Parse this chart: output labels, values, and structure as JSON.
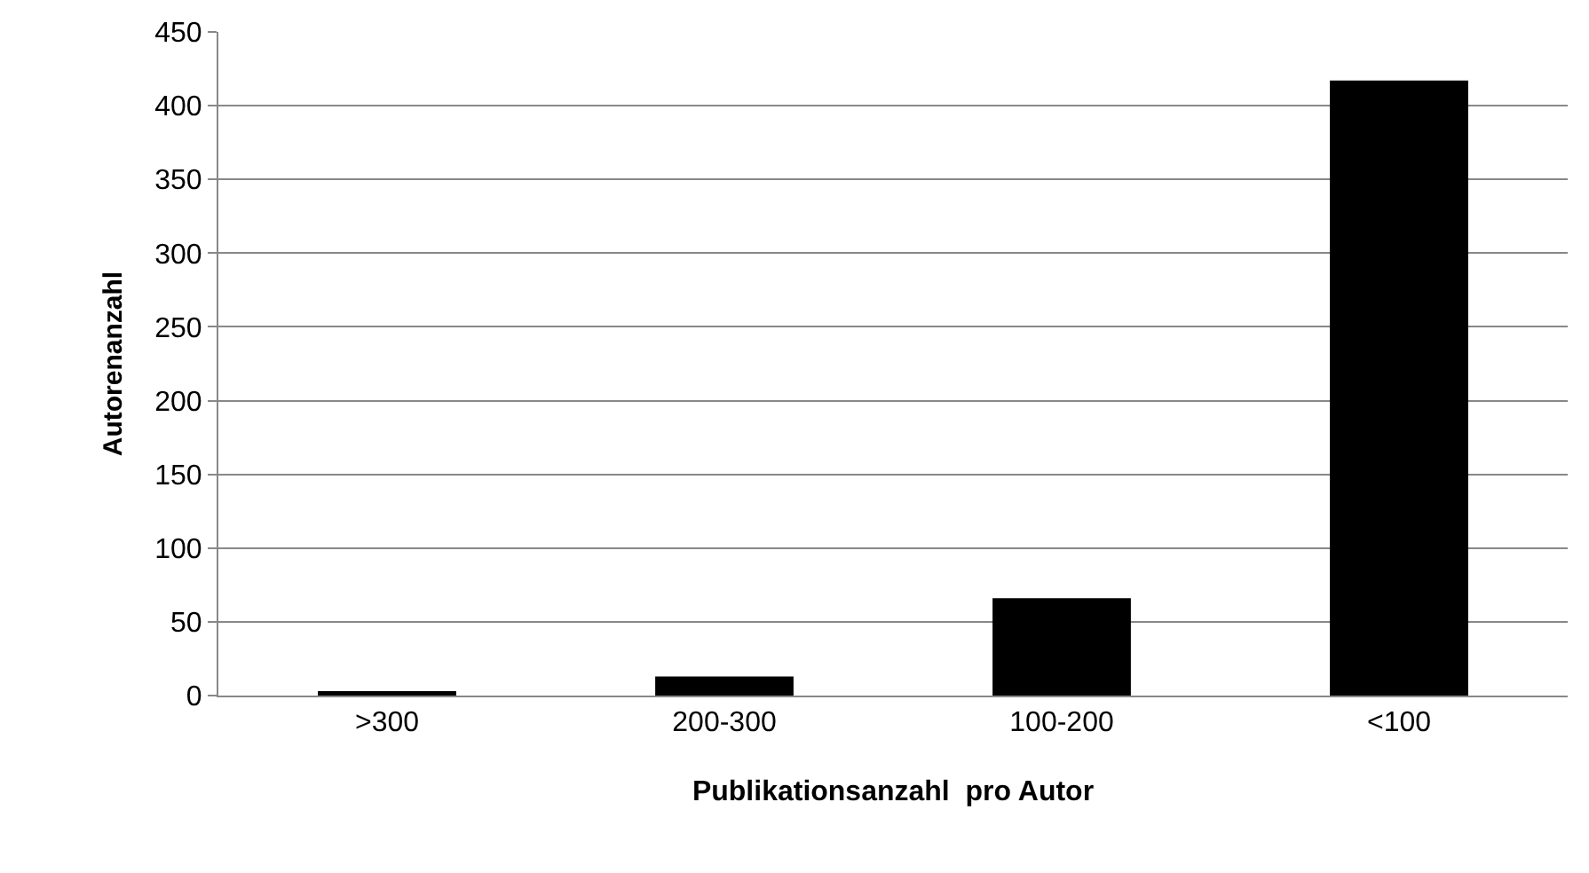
{
  "chart_data": {
    "type": "bar",
    "xlabel": "Publikationsanzahl  pro Autor",
    "ylabel": "Autorenanzahl",
    "categories": [
      ">300",
      "200-300",
      "100-200",
      "<100"
    ],
    "values": [
      3,
      13,
      66,
      417
    ],
    "color": "#000000",
    "ylim": [
      0,
      450
    ],
    "yticks": [
      0,
      50,
      100,
      150,
      200,
      250,
      300,
      350,
      400,
      450
    ],
    "grid": "y",
    "legend": false
  }
}
